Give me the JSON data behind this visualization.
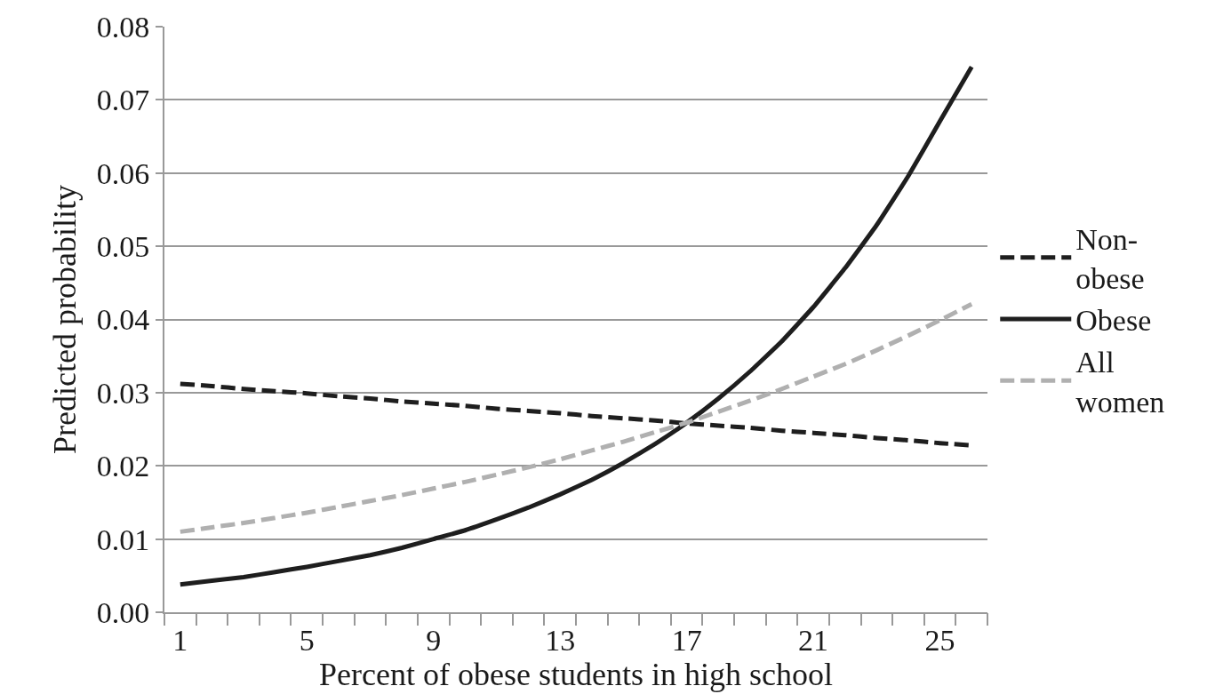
{
  "chart_data": {
    "type": "line",
    "xlabel": "Percent of obese students in high school",
    "ylabel": "Predicted probability",
    "x": [
      1,
      2,
      3,
      4,
      5,
      6,
      7,
      8,
      9,
      10,
      11,
      12,
      13,
      14,
      15,
      16,
      17,
      18,
      19,
      20,
      21,
      22,
      23,
      24,
      25,
      26
    ],
    "xlim": [
      0.5,
      26.5
    ],
    "xticks": [
      {
        "value": 0.5,
        "label": null
      },
      {
        "value": 1,
        "label": "1"
      },
      {
        "value": 1.5,
        "label": null
      },
      {
        "value": 2.5,
        "label": null
      },
      {
        "value": 3.5,
        "label": null
      },
      {
        "value": 4.5,
        "label": null
      },
      {
        "value": 5,
        "label": "5"
      },
      {
        "value": 5.5,
        "label": null
      },
      {
        "value": 6.5,
        "label": null
      },
      {
        "value": 7.5,
        "label": null
      },
      {
        "value": 8.5,
        "label": null
      },
      {
        "value": 9,
        "label": "9"
      },
      {
        "value": 9.5,
        "label": null
      },
      {
        "value": 10.5,
        "label": null
      },
      {
        "value": 11.5,
        "label": null
      },
      {
        "value": 12.5,
        "label": null
      },
      {
        "value": 13,
        "label": "13"
      },
      {
        "value": 13.5,
        "label": null
      },
      {
        "value": 14.5,
        "label": null
      },
      {
        "value": 15.5,
        "label": null
      },
      {
        "value": 16.5,
        "label": null
      },
      {
        "value": 17,
        "label": "17"
      },
      {
        "value": 17.5,
        "label": null
      },
      {
        "value": 18.5,
        "label": null
      },
      {
        "value": 19.5,
        "label": null
      },
      {
        "value": 20.5,
        "label": null
      },
      {
        "value": 21,
        "label": "21"
      },
      {
        "value": 21.5,
        "label": null
      },
      {
        "value": 22.5,
        "label": null
      },
      {
        "value": 23.5,
        "label": null
      },
      {
        "value": 24.5,
        "label": null
      },
      {
        "value": 25,
        "label": "25"
      },
      {
        "value": 25.5,
        "label": null
      },
      {
        "value": 26.5,
        "label": null
      }
    ],
    "ylim": [
      0,
      0.08
    ],
    "yticks": [
      {
        "value": 0,
        "label": "0.00"
      },
      {
        "value": 0.01,
        "label": "0.01"
      },
      {
        "value": 0.02,
        "label": "0.02"
      },
      {
        "value": 0.03,
        "label": "0.03"
      },
      {
        "value": 0.04,
        "label": "0.04"
      },
      {
        "value": 0.05,
        "label": "0.05"
      },
      {
        "value": 0.06,
        "label": "0.06"
      },
      {
        "value": 0.07,
        "label": "0.07"
      },
      {
        "value": 0.08,
        "label": "0.08"
      }
    ],
    "grid": "y",
    "legend": "right",
    "series": [
      {
        "name": "Non-obese",
        "color": "#1e1e1e",
        "line_style": "dashed",
        "values": [
          0.0312,
          0.0309,
          0.0305,
          0.0302,
          0.0299,
          0.0295,
          0.0292,
          0.0288,
          0.0285,
          0.0282,
          0.0278,
          0.0275,
          0.0272,
          0.0268,
          0.0265,
          0.0262,
          0.0258,
          0.0255,
          0.0252,
          0.0248,
          0.0245,
          0.0242,
          0.0238,
          0.0235,
          0.0231,
          0.0228
        ]
      },
      {
        "name": "Obese",
        "color": "#1e1e1e",
        "line_style": "solid",
        "values": [
          0.0038,
          0.0043,
          0.0048,
          0.0055,
          0.0062,
          0.007,
          0.0078,
          0.0088,
          0.01,
          0.0112,
          0.0127,
          0.0143,
          0.0161,
          0.0181,
          0.0204,
          0.023,
          0.0259,
          0.0292,
          0.0329,
          0.037,
          0.0417,
          0.047,
          0.0529,
          0.0596,
          0.0671,
          0.0745
        ]
      },
      {
        "name": "All women",
        "color": "#b0b0b0",
        "line_style": "dashed",
        "values": [
          0.011,
          0.0116,
          0.0122,
          0.0129,
          0.0136,
          0.0144,
          0.0152,
          0.016,
          0.0169,
          0.0178,
          0.0188,
          0.0198,
          0.0209,
          0.0221,
          0.0233,
          0.0246,
          0.0259,
          0.0274,
          0.0289,
          0.0305,
          0.0322,
          0.0339,
          0.0358,
          0.0378,
          0.0399,
          0.0421
        ]
      }
    ]
  }
}
